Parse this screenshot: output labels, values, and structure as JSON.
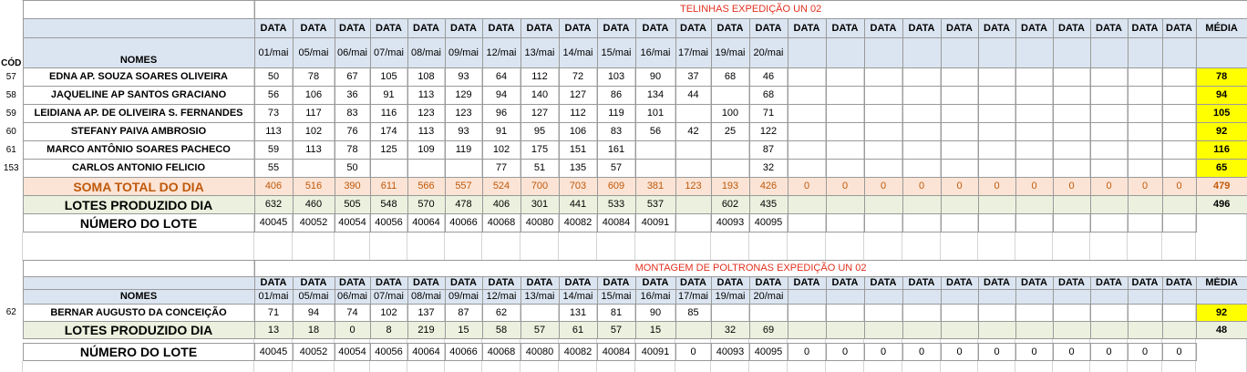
{
  "header_label": "DATA",
  "media_label": "MÉDIA",
  "dates": [
    "01/mai",
    "05/mai",
    "06/mai",
    "07/mai",
    "08/mai",
    "09/mai",
    "12/mai",
    "13/mai",
    "14/mai",
    "15/mai",
    "16/mai",
    "17/mai",
    "19/mai",
    "20/mai"
  ],
  "section1": {
    "title": "TELINHAS EXPEDIÇÃO UN 02",
    "cod_label": "CÓD",
    "nomes_label": "NOMES",
    "rows": [
      {
        "cod": "57",
        "name": "EDNA AP. SOUZA SOARES OLIVEIRA",
        "values": [
          "50",
          "78",
          "67",
          "105",
          "108",
          "93",
          "64",
          "112",
          "72",
          "103",
          "90",
          "37",
          "68",
          "46"
        ],
        "media": "78"
      },
      {
        "cod": "58",
        "name": "JAQUELINE AP SANTOS GRACIANO",
        "values": [
          "56",
          "106",
          "36",
          "91",
          "113",
          "129",
          "94",
          "140",
          "127",
          "86",
          "134",
          "44",
          "",
          "68"
        ],
        "media": "94"
      },
      {
        "cod": "59",
        "name": "LEIDIANA AP. DE OLIVEIRA S. FERNANDES",
        "values": [
          "73",
          "117",
          "83",
          "116",
          "123",
          "123",
          "96",
          "127",
          "112",
          "119",
          "101",
          "",
          "100",
          "71"
        ],
        "media": "105"
      },
      {
        "cod": "60",
        "name": "STEFANY PAIVA AMBROSIO",
        "values": [
          "113",
          "102",
          "76",
          "174",
          "113",
          "93",
          "91",
          "95",
          "106",
          "83",
          "56",
          "42",
          "25",
          "122"
        ],
        "media": "92"
      },
      {
        "cod": "61",
        "name": "MARCO ANTÔNIO SOARES PACHECO",
        "values": [
          "59",
          "113",
          "78",
          "125",
          "109",
          "119",
          "102",
          "175",
          "151",
          "161",
          "",
          "",
          "",
          "87"
        ],
        "media": "116"
      },
      {
        "cod": "153",
        "name": "CARLOS ANTONIO FELICIO",
        "values": [
          "55",
          "",
          "50",
          "",
          "",
          "",
          "77",
          "51",
          "135",
          "57",
          "",
          "",
          "",
          "32"
        ],
        "media": "65"
      }
    ],
    "soma": {
      "label": "SOMA TOTAL DO DIA",
      "values": [
        "406",
        "516",
        "390",
        "611",
        "566",
        "557",
        "524",
        "700",
        "703",
        "609",
        "381",
        "123",
        "193",
        "426"
      ],
      "extra": [
        "0",
        "0",
        "0",
        "0",
        "0",
        "0",
        "0",
        "0",
        "0",
        "0",
        "0"
      ],
      "media": "479"
    },
    "lotes": {
      "label": "LOTES PRODUZIDO DIA",
      "values": [
        "632",
        "460",
        "505",
        "548",
        "570",
        "478",
        "406",
        "301",
        "441",
        "533",
        "537",
        "",
        "602",
        "435"
      ],
      "media": "496"
    },
    "numero": {
      "label": "NÚMERO DO LOTE",
      "values": [
        "40045",
        "40052",
        "40054",
        "40056",
        "40064",
        "40066",
        "40068",
        "40080",
        "40082",
        "40084",
        "40091",
        "",
        "40093",
        "40095"
      ]
    }
  },
  "section2": {
    "title": "MONTAGEM DE POLTRONAS EXPEDIÇÃO UN 02",
    "nomes_label": "NOMES",
    "rows": [
      {
        "cod": "62",
        "name": "BERNAR AUGUSTO DA CONCEIÇÃO",
        "values": [
          "71",
          "94",
          "74",
          "102",
          "137",
          "87",
          "62",
          "",
          "131",
          "81",
          "90",
          "85",
          "",
          ""
        ],
        "media": "92"
      }
    ],
    "lotes": {
      "label": "LOTES PRODUZIDO DIA",
      "values": [
        "13",
        "18",
        "0",
        "8",
        "219",
        "15",
        "58",
        "57",
        "61",
        "57",
        "15",
        "",
        "32",
        "69"
      ],
      "media": "48"
    },
    "numero": {
      "label": "NÚMERO DO LOTE",
      "values": [
        "40045",
        "40052",
        "40054",
        "40056",
        "40064",
        "40066",
        "40068",
        "40080",
        "40082",
        "40084",
        "40091",
        "0",
        "40093",
        "40095"
      ],
      "extra": [
        "0",
        "0",
        "0",
        "0",
        "0",
        "0",
        "0",
        "0",
        "0",
        "0",
        "0"
      ]
    }
  }
}
